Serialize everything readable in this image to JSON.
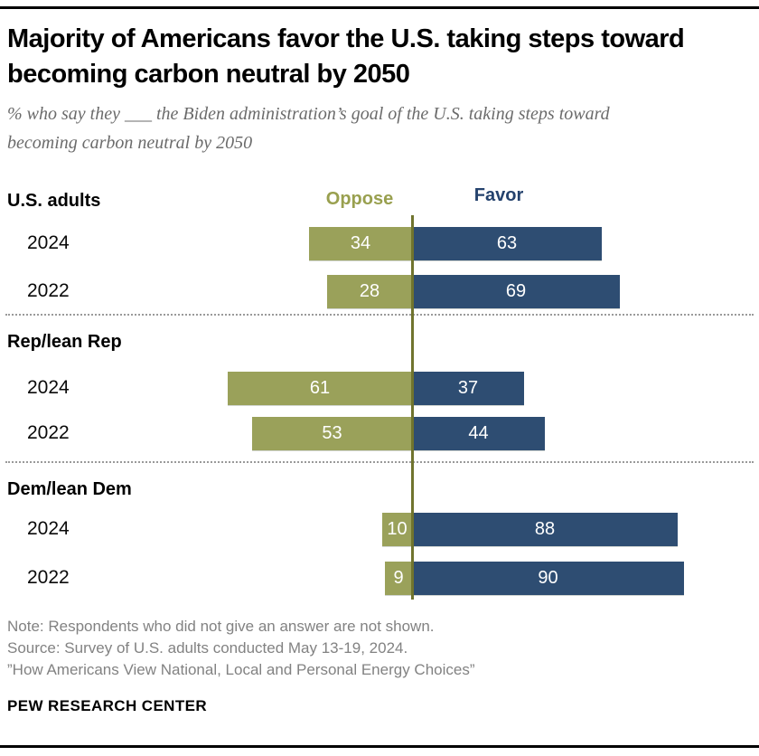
{
  "chart_data": {
    "type": "bar",
    "variant": "horizontal-diverging",
    "title": "Majority of Americans favor the U.S. taking steps toward becoming carbon neutral by 2050",
    "subtitle": "% who say they ___ the Biden administration’s goal of the U.S. taking steps toward becoming carbon neutral by 2050",
    "legend": [
      {
        "label": "Oppose",
        "side": "left",
        "bar_color": "#9aa15a",
        "text_color": "#99a04f"
      },
      {
        "label": "Favor",
        "side": "right",
        "bar_color": "#2e4d72",
        "text_color": "#24426d"
      }
    ],
    "axis": {
      "center_value": 0,
      "unit": "percent"
    },
    "groups": [
      {
        "label": "U.S. adults",
        "rows": [
          {
            "year": "2024",
            "oppose": 34,
            "favor": 63
          },
          {
            "year": "2022",
            "oppose": 28,
            "favor": 69
          }
        ]
      },
      {
        "label": "Rep/lean Rep",
        "rows": [
          {
            "year": "2024",
            "oppose": 61,
            "favor": 37
          },
          {
            "year": "2022",
            "oppose": 53,
            "favor": 44
          }
        ]
      },
      {
        "label": "Dem/lean Dem",
        "rows": [
          {
            "year": "2024",
            "oppose": 10,
            "favor": 88
          },
          {
            "year": "2022",
            "oppose": 9,
            "favor": 90
          }
        ]
      }
    ],
    "colors": {
      "axis_line": "#70742e",
      "separator": "#9a9a9a",
      "bar_label": "#ffffff"
    }
  },
  "footer": {
    "note": "Note: Respondents who did not give an answer are not shown.",
    "source": "Source: Survey of U.S. adults conducted May 13-19, 2024.",
    "report": "”How Americans View National, Local and Personal Energy Choices”",
    "brand": "PEW RESEARCH CENTER"
  }
}
